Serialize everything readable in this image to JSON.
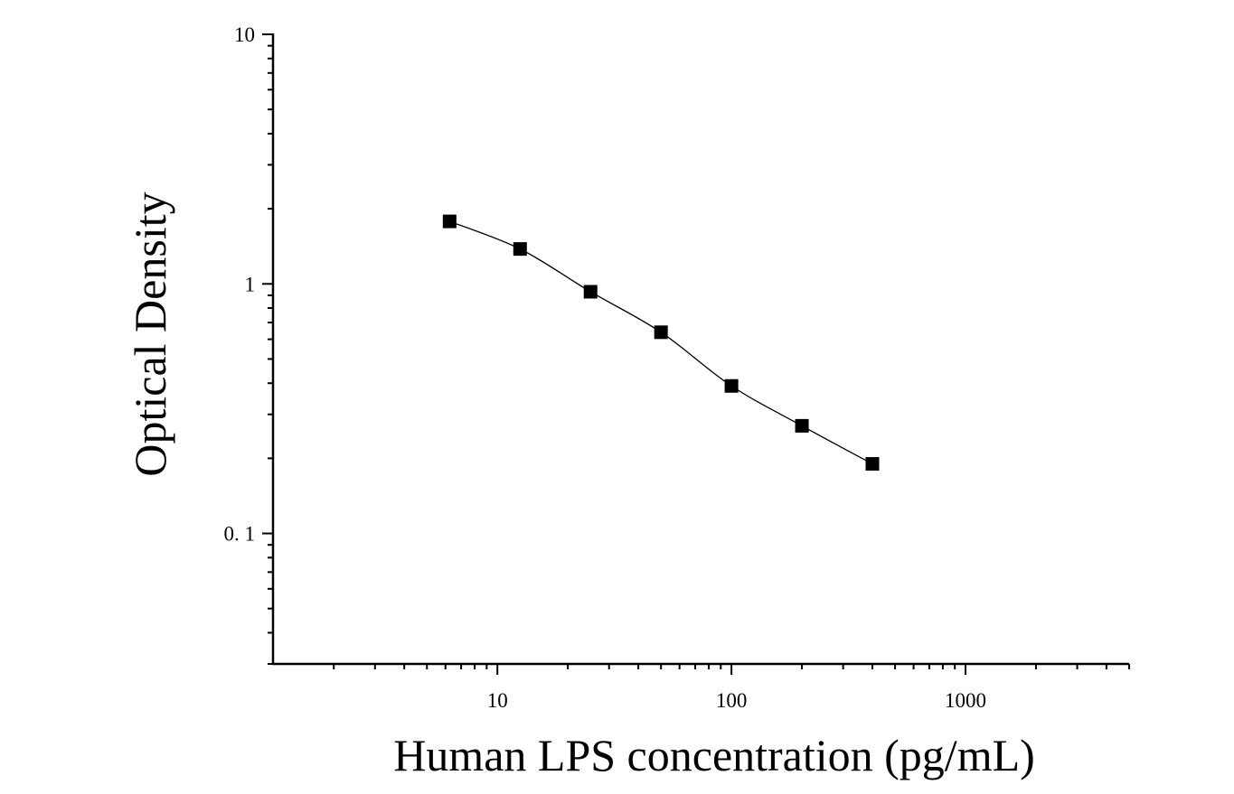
{
  "chart_data": {
    "type": "scatter",
    "title": "",
    "xlabel": "Human LPS concentration (pg/mL)",
    "ylabel": "Optical Density",
    "x_scale": "log",
    "y_scale": "log",
    "xlim": [
      1.1,
      5000
    ],
    "ylim": [
      0.03,
      10
    ],
    "x_tick_labels": [
      {
        "value": 10,
        "label": "10"
      },
      {
        "value": 100,
        "label": "100"
      },
      {
        "value": 1000,
        "label": "1000"
      }
    ],
    "y_tick_labels": [
      {
        "value": 10,
        "label": "10"
      },
      {
        "value": 1,
        "label": "1"
      },
      {
        "value": 0.1,
        "label": "0. 1"
      }
    ],
    "grid": false,
    "legend": "none",
    "series": [
      {
        "x": [
          6.25,
          12.5,
          25,
          50,
          100,
          200,
          400
        ],
        "y": [
          1.78,
          1.38,
          0.93,
          0.64,
          0.39,
          0.27,
          0.19
        ],
        "marker": "square",
        "color": "#000000",
        "fit_curve": true
      }
    ]
  }
}
